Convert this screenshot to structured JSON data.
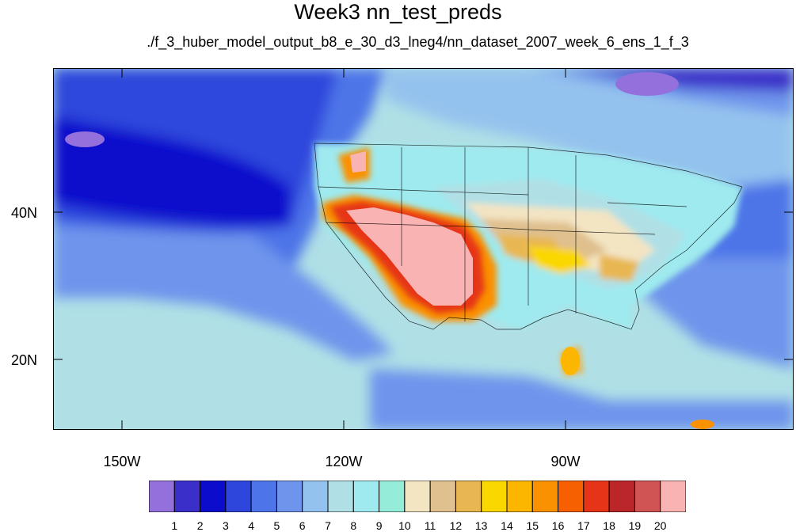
{
  "title": "Week3 nn_test_preds",
  "subtitle": "./f_3_huber_model_output_b8_e_30_d3_lneg4/nn_dataset_2007_week_6_ens_1_f_3",
  "axes": {
    "y_labels": [
      {
        "text": "40N",
        "lat": 40
      },
      {
        "text": "20N",
        "lat": 20
      }
    ],
    "x_labels": [
      {
        "text": "150W",
        "lon": -150
      },
      {
        "text": "120W",
        "lon": -120
      },
      {
        "text": "90W",
        "lon": -90
      }
    ],
    "lon_range": [
      -159.3,
      -59.3
    ],
    "lat_range": [
      10.5,
      60
    ]
  },
  "colorbar": {
    "labels": [
      "1",
      "2",
      "3",
      "4",
      "5",
      "6",
      "7",
      "8",
      "9",
      "10",
      "11",
      "12",
      "13",
      "14",
      "15",
      "16",
      "17",
      "18",
      "19",
      "20"
    ],
    "colors": [
      "#9370db",
      "#3a2fc9",
      "#0c0ccc",
      "#2e46dc",
      "#4d74e8",
      "#6e94ec",
      "#94c2ee",
      "#b0e0e6",
      "#9eeaee",
      "#95ecd8",
      "#f3e4c2",
      "#dfc08e",
      "#e8b751",
      "#fbd700",
      "#fcb600",
      "#fa9100",
      "#f76000",
      "#e53417",
      "#ba2629",
      "#d15454",
      "#f9b3b3"
    ]
  }
}
